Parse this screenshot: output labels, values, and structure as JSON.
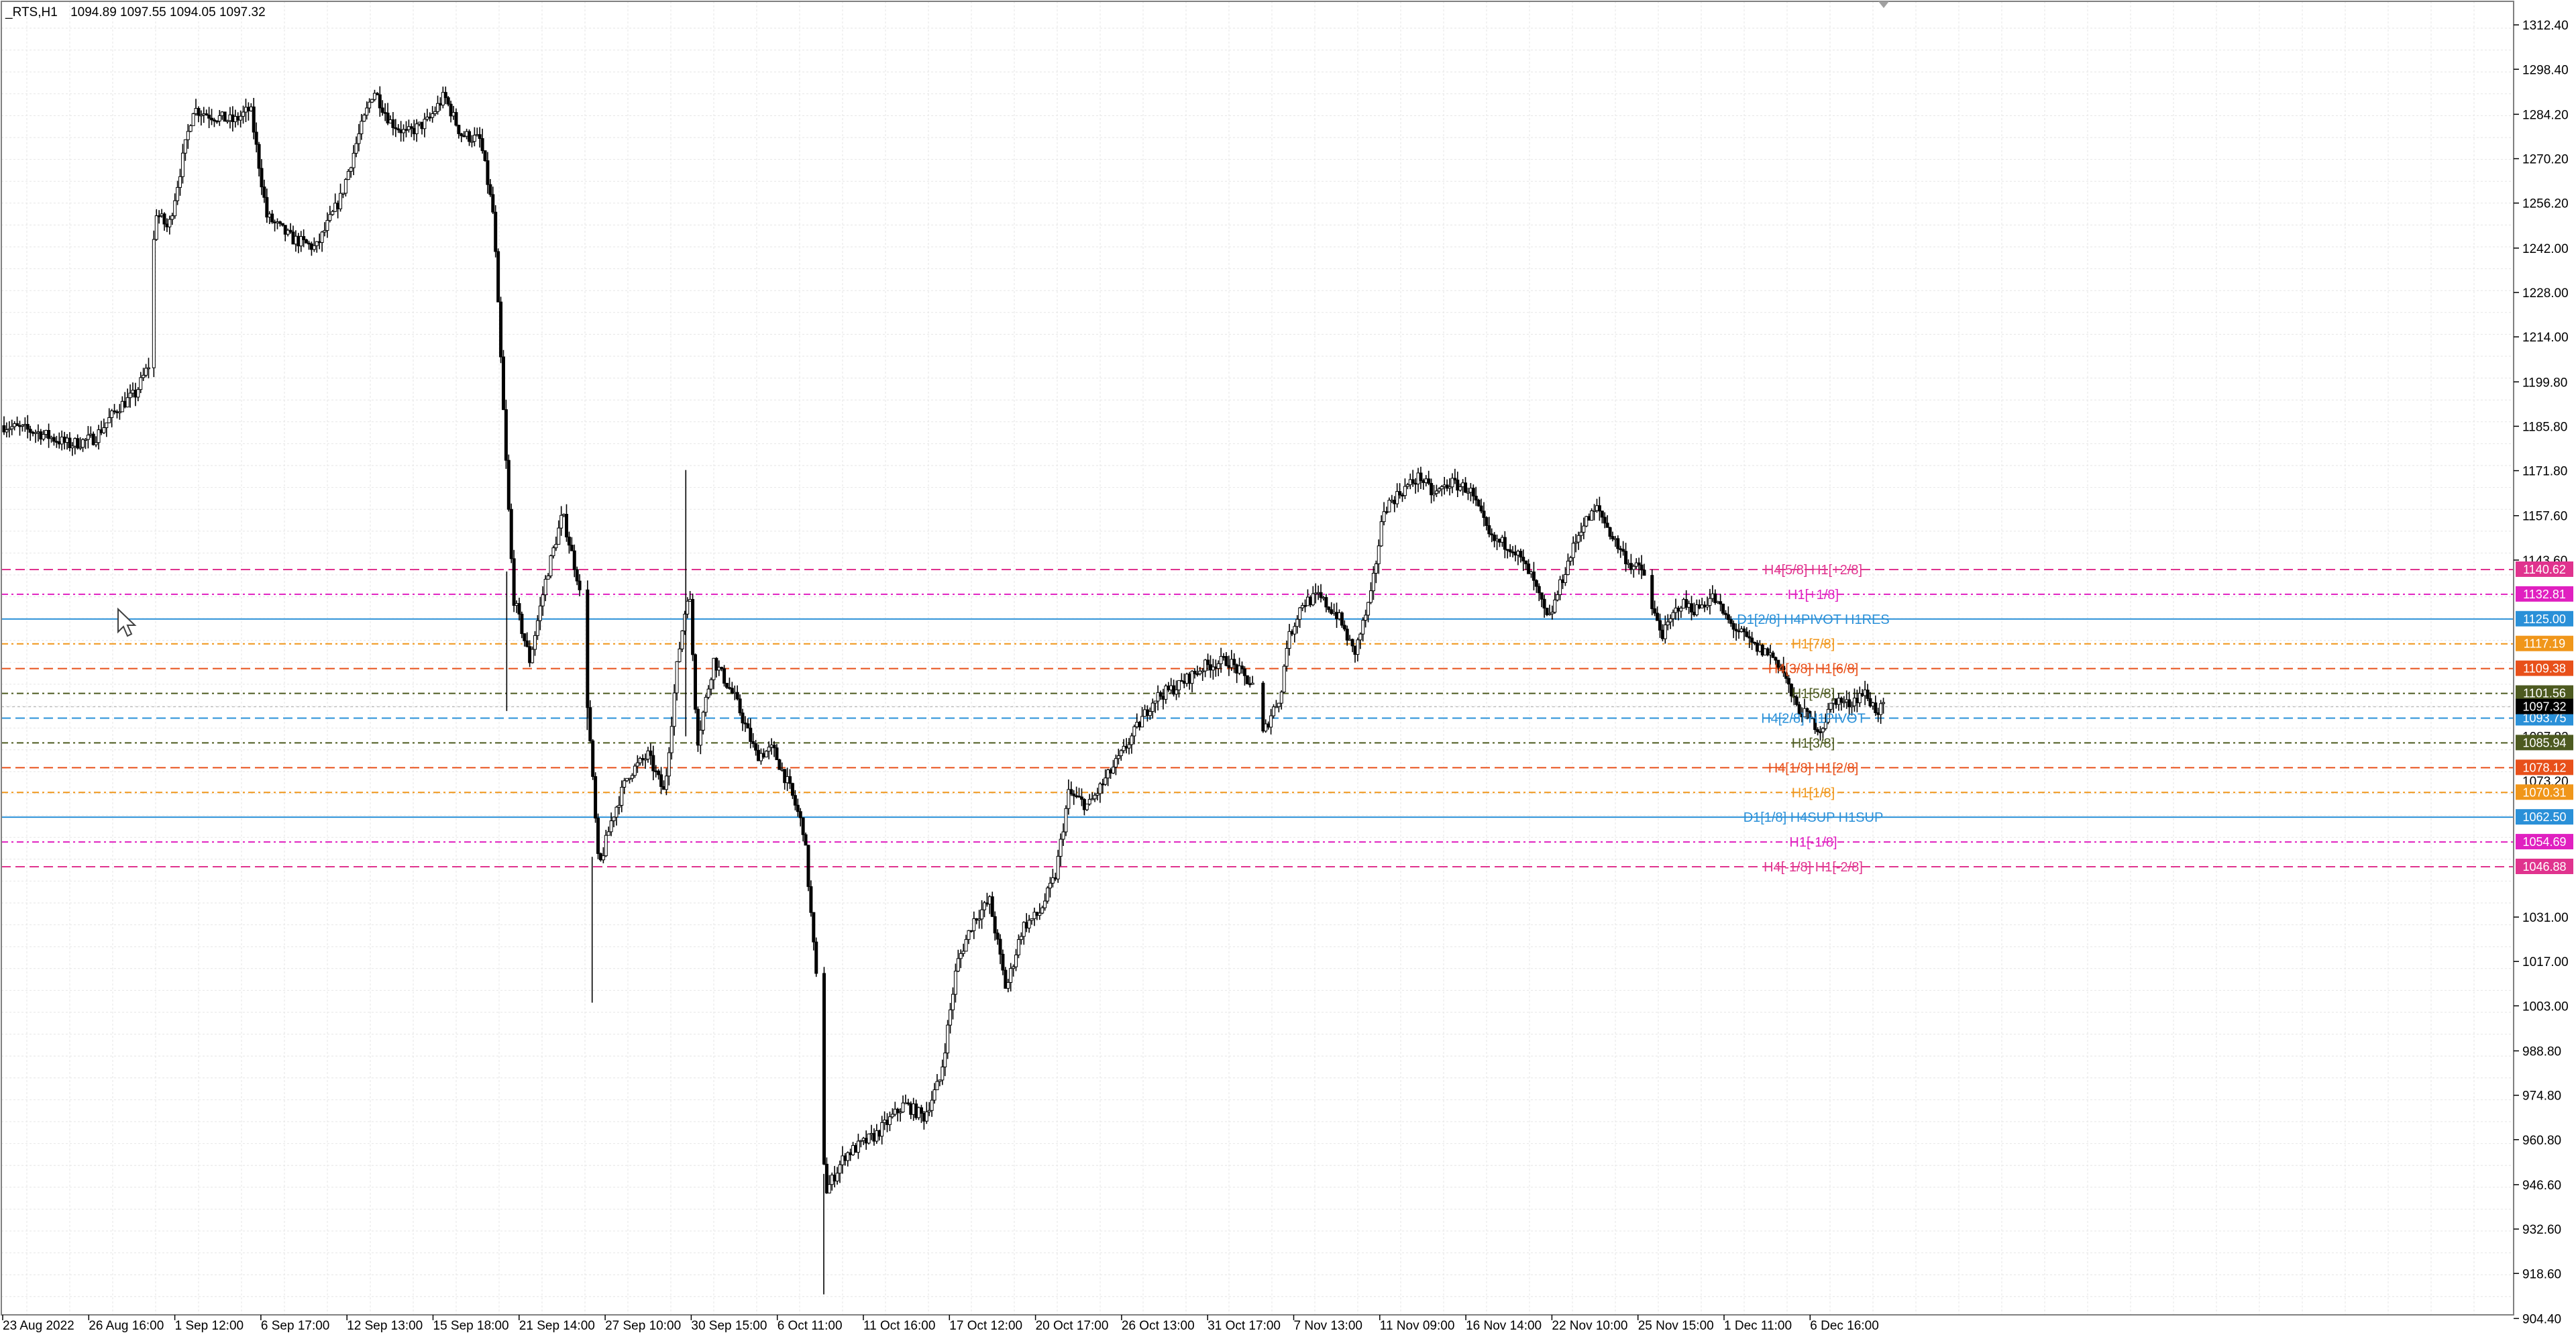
{
  "header": {
    "symbol_timeframe": "_RTS,H1",
    "ohlc": "1094.89 1097.55 1094.05 1097.32"
  },
  "chart_data": {
    "type": "candlestick",
    "symbol": "_RTS",
    "timeframe": "H1",
    "grid": true,
    "ylim": [
      897.5,
      1319.4
    ],
    "y_ticks": [
      "1312.40",
      "1298.40",
      "1284.20",
      "1270.20",
      "1256.20",
      "1242.00",
      "1228.00",
      "1214.00",
      "1199.80",
      "1185.80",
      "1171.80",
      "1157.60",
      "1143.60",
      "1031.00",
      "1017.00",
      "1003.00",
      "988.80",
      "974.80",
      "960.80",
      "946.60",
      "932.60",
      "918.60",
      "904.40"
    ],
    "x_tick_labels": [
      "23 Aug 2022",
      "26 Aug 16:00",
      "1 Sep 12:00",
      "6 Sep 17:00",
      "12 Sep 13:00",
      "15 Sep 18:00",
      "21 Sep 14:00",
      "27 Sep 10:00",
      "30 Sep 15:00",
      "6 Oct 11:00",
      "11 Oct 16:00",
      "17 Oct 12:00",
      "20 Oct 17:00",
      "26 Oct 13:00",
      "31 Oct 17:00",
      "7 Nov 13:00",
      "11 Nov 09:00",
      "16 Nov 14:00",
      "22 Nov 10:00",
      "25 Nov 15:00",
      "1 Dec 11:00",
      "6 Dec 16:00"
    ],
    "price_path": [
      [
        0,
        1186
      ],
      [
        20,
        1184
      ],
      [
        40,
        1180
      ],
      [
        55,
        1182
      ],
      [
        70,
        1192
      ],
      [
        80,
        1196
      ],
      [
        88,
        1205
      ],
      [
        92,
        1254
      ],
      [
        100,
        1248
      ],
      [
        115,
        1286
      ],
      [
        125,
        1284
      ],
      [
        140,
        1282
      ],
      [
        150,
        1286
      ],
      [
        160,
        1252
      ],
      [
        175,
        1245
      ],
      [
        190,
        1242
      ],
      [
        205,
        1258
      ],
      [
        215,
        1276
      ],
      [
        225,
        1292
      ],
      [
        235,
        1282
      ],
      [
        245,
        1278
      ],
      [
        258,
        1282
      ],
      [
        268,
        1290
      ],
      [
        278,
        1278
      ],
      [
        290,
        1276
      ],
      [
        298,
        1252
      ],
      [
        305,
        1180
      ],
      [
        310,
        1132
      ],
      [
        320,
        1112
      ],
      [
        330,
        1138
      ],
      [
        340,
        1158
      ],
      [
        350,
        1136
      ],
      [
        355,
        1100
      ],
      [
        362,
        1046
      ],
      [
        370,
        1062
      ],
      [
        380,
        1076
      ],
      [
        392,
        1082
      ],
      [
        402,
        1070
      ],
      [
        410,
        1112
      ],
      [
        417,
        1136
      ],
      [
        422,
        1086
      ],
      [
        432,
        1112
      ],
      [
        445,
        1100
      ],
      [
        458,
        1082
      ],
      [
        468,
        1084
      ],
      [
        478,
        1072
      ],
      [
        487,
        1058
      ],
      [
        495,
        1008
      ],
      [
        500,
        944
      ],
      [
        512,
        956
      ],
      [
        530,
        962
      ],
      [
        548,
        972
      ],
      [
        560,
        968
      ],
      [
        570,
        980
      ],
      [
        580,
        1016
      ],
      [
        590,
        1030
      ],
      [
        600,
        1036
      ],
      [
        610,
        1008
      ],
      [
        620,
        1028
      ],
      [
        630,
        1032
      ],
      [
        640,
        1044
      ],
      [
        648,
        1070
      ],
      [
        660,
        1066
      ],
      [
        680,
        1082
      ],
      [
        700,
        1100
      ],
      [
        715,
        1104
      ],
      [
        730,
        1110
      ],
      [
        745,
        1112
      ],
      [
        760,
        1104
      ],
      [
        766,
        1088
      ],
      [
        772,
        1096
      ],
      [
        778,
        1102
      ],
      [
        780,
        1116
      ],
      [
        790,
        1130
      ],
      [
        800,
        1132
      ],
      [
        812,
        1126
      ],
      [
        822,
        1114
      ],
      [
        832,
        1132
      ],
      [
        840,
        1160
      ],
      [
        852,
        1166
      ],
      [
        862,
        1170
      ],
      [
        870,
        1164
      ],
      [
        880,
        1168
      ],
      [
        892,
        1166
      ],
      [
        905,
        1150
      ],
      [
        918,
        1148
      ],
      [
        930,
        1138
      ],
      [
        940,
        1124
      ],
      [
        950,
        1140
      ],
      [
        960,
        1154
      ],
      [
        970,
        1160
      ],
      [
        980,
        1150
      ],
      [
        990,
        1142
      ],
      [
        998,
        1140
      ],
      [
        1003,
        1128
      ],
      [
        1010,
        1120
      ],
      [
        1020,
        1130
      ],
      [
        1030,
        1128
      ],
      [
        1040,
        1132
      ],
      [
        1050,
        1124
      ],
      [
        1058,
        1120
      ],
      [
        1066,
        1116
      ],
      [
        1075,
        1114
      ],
      [
        1082,
        1110
      ],
      [
        1090,
        1098
      ],
      [
        1098,
        1094
      ],
      [
        1106,
        1090
      ],
      [
        1114,
        1100
      ],
      [
        1122,
        1098
      ],
      [
        1132,
        1102
      ],
      [
        1140,
        1096
      ],
      [
        1145,
        1097
      ]
    ],
    "levels": [
      {
        "label": "H4[5/8] H1[+2/8]",
        "price": "1140.62",
        "color": "#e0338e",
        "tag_bg": "#e0338e",
        "dash": "14,7"
      },
      {
        "label": "H1[+1/8]",
        "price": "1132.81",
        "color": "#e020c0",
        "tag_bg": "#e020c0",
        "dash": "10,5,3,5"
      },
      {
        "label": "D1[2/8] H4PIVOT H1RES",
        "price": "1125.00",
        "color": "#2a90d8",
        "tag_bg": "#2a90d8",
        "dash": ""
      },
      {
        "label": "H1[7/8]",
        "price": "1117.19",
        "color": "#f0961a",
        "tag_bg": "#f0961a",
        "dash": "10,5,3,5"
      },
      {
        "label": "H4[3/8] H1[6/8]",
        "price": "1109.38",
        "color": "#e8501a",
        "tag_bg": "#e8501a",
        "dash": "14,7"
      },
      {
        "label": "H1[5/8]",
        "price": "1101.56",
        "color": "#4d5a20",
        "tag_bg": "#4d5a20",
        "dash": "10,5,3,5"
      },
      {
        "label": "H4[2/8] H1PIVOT",
        "price": "1093.75",
        "color": "#2a90d8",
        "tag_bg": "#2a90d8",
        "dash": "14,7"
      },
      {
        "label": "H1[3/8]",
        "price": "1085.94",
        "color": "#4d5a20",
        "tag_bg": "#4d5a20",
        "dash": "10,5,3,5"
      },
      {
        "label": "H4[1/8] H1[2/8]",
        "price": "1078.12",
        "color": "#e8501a",
        "tag_bg": "#e8501a",
        "dash": "14,7"
      },
      {
        "label": "H1[1/8]",
        "price": "1070.31",
        "color": "#f0961a",
        "tag_bg": "#f0961a",
        "dash": "10,5,3,5"
      },
      {
        "label": "D1[1/8] H4SUP H1SUP",
        "price": "1062.50",
        "color": "#2a90d8",
        "tag_bg": "#2a90d8",
        "dash": ""
      },
      {
        "label": "H1[-1/8]",
        "price": "1054.69",
        "color": "#e020c0",
        "tag_bg": "#e020c0",
        "dash": "10,5,3,5"
      },
      {
        "label": "H4[-1/8] H1[-2/8]",
        "price": "1046.88",
        "color": "#e0338e",
        "tag_bg": "#e0338e",
        "dash": "14,7"
      }
    ],
    "current_price": {
      "price": "1097.32",
      "tag_bg": "#000000"
    },
    "partial_tags": [
      {
        "price": "1088.00",
        "text": "1087.82"
      },
      {
        "price": "1074.00",
        "text": "1073.20"
      }
    ]
  },
  "colors": {
    "grid": "#e6e6e6",
    "candle": "#000000",
    "background": "#ffffff"
  }
}
